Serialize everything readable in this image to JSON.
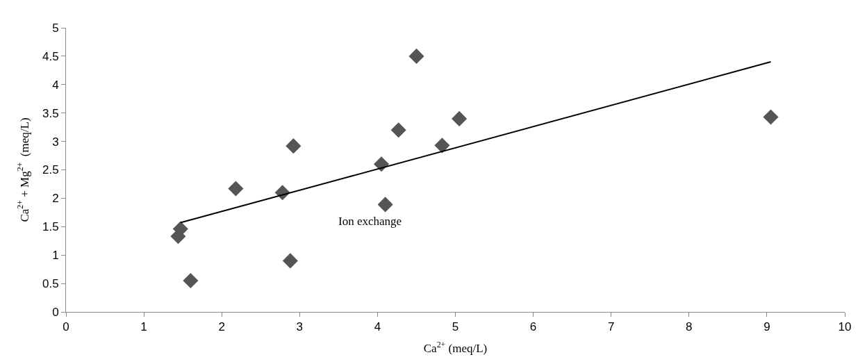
{
  "chart_data": {
    "type": "scatter",
    "xlabel": "Ca$^{2+}$ (meq/L)",
    "ylabel": "Ca$^{2+}$ + Mg$^{2+}$  (meq/L)",
    "series": [
      {
        "color": "#555555",
        "marker": "diamond",
        "x": [
          1.44,
          1.47,
          1.6,
          2.18,
          2.78,
          2.88,
          2.92,
          4.05,
          4.1,
          4.27,
          4.5,
          4.83,
          5.05,
          9.05
        ],
        "values": [
          1.33,
          1.46,
          0.55,
          2.17,
          2.1,
          0.9,
          2.92,
          2.6,
          1.89,
          3.2,
          4.5,
          2.93,
          3.4,
          3.43
        ]
      },
      {
        "type": "line",
        "color": "#000000",
        "marker": "none",
        "x": [
          1.47,
          9.05
        ],
        "values": [
          1.57,
          4.4
        ]
      }
    ],
    "annotations": [
      "Ion exchange"
    ],
    "xlim": [
      0,
      10
    ],
    "xticks": [
      0,
      1,
      2,
      3,
      4,
      5,
      6,
      7,
      8,
      9,
      10
    ],
    "ylim": [
      0,
      5
    ],
    "yticks": [
      0,
      0.5,
      1,
      1.5,
      2,
      2.5,
      3,
      3.5,
      4,
      4.5,
      5
    ]
  }
}
